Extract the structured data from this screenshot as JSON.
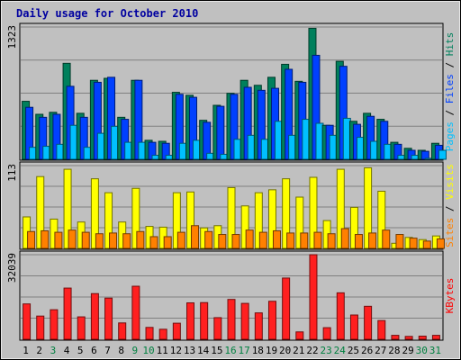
{
  "chart_data": {
    "type": "bar",
    "title": "Daily usage for October 2010",
    "days": [
      "1",
      "2",
      "3",
      "4",
      "5",
      "6",
      "7",
      "8",
      "9",
      "10",
      "11",
      "12",
      "13",
      "14",
      "15",
      "16",
      "17",
      "18",
      "19",
      "20",
      "21",
      "22",
      "23",
      "24",
      "25",
      "26",
      "27",
      "28",
      "29",
      "30",
      "31"
    ],
    "weekend_days": [
      "3",
      "9",
      "10",
      "16",
      "17",
      "23",
      "24",
      "30",
      "31"
    ],
    "panels": [
      {
        "id": "pages-files-hits",
        "max_label": "1323",
        "max": 1323,
        "side_labels": [
          {
            "text": "Pages",
            "color": "#00c0ff"
          },
          {
            "text": " / ",
            "color": "#000000"
          },
          {
            "text": "Files",
            "color": "#0040ff"
          },
          {
            "text": " / ",
            "color": "#000000"
          },
          {
            "text": "Hits",
            "color": "#00805c"
          }
        ],
        "series": [
          {
            "name": "Hits",
            "color": "#00805c",
            "values": [
              580,
              450,
              470,
              960,
              460,
              790,
              810,
              420,
              790,
              190,
              180,
              670,
              640,
              390,
              540,
              660,
              790,
              740,
              820,
              950,
              780,
              1310,
              340,
              980,
              380,
              460,
              400,
              170,
              110,
              90,
              160
            ]
          },
          {
            "name": "Files",
            "color": "#0040ff",
            "values": [
              520,
              420,
              450,
              730,
              420,
              770,
              820,
              400,
              790,
              170,
              160,
              650,
              620,
              370,
              530,
              650,
              720,
              690,
              710,
              900,
              770,
              1040,
              340,
              930,
              350,
              430,
              380,
              150,
              90,
              80,
              140
            ]
          },
          {
            "name": "Pages",
            "color": "#00c0ff",
            "values": [
              120,
              130,
              150,
              340,
              120,
              260,
              330,
              170,
              170,
              40,
              40,
              160,
              190,
              60,
              50,
              200,
              240,
              200,
              380,
              240,
              400,
              360,
              240,
              410,
              220,
              180,
              150,
              40,
              40,
              10,
              90
            ]
          }
        ]
      },
      {
        "id": "visits-sites",
        "max_label": "113",
        "max": 113,
        "side_labels": [
          {
            "text": "Sites",
            "color": "#ff8000"
          },
          {
            "text": " / ",
            "color": "#000000"
          },
          {
            "text": "Visits",
            "color": "#ffff00"
          }
        ],
        "series": [
          {
            "name": "Visits",
            "color": "#ffff00",
            "values": [
              43,
              98,
              40,
              108,
              36,
              95,
              76,
              36,
              82,
              30,
              29,
              76,
              77,
              28,
              31,
              83,
              58,
              76,
              80,
              95,
              70,
              97,
              38,
              108,
              56,
              110,
              78,
              7,
              15,
              12,
              17
            ]
          },
          {
            "name": "Sites",
            "color": "#ff8000",
            "values": [
              23,
              24,
              22,
              25,
              22,
              20,
              21,
              20,
              23,
              16,
              16,
              22,
              31,
              23,
              19,
              19,
              25,
              22,
              24,
              21,
              21,
              22,
              20,
              27,
              19,
              21,
              25,
              19,
              14,
              10,
              13
            ]
          }
        ]
      },
      {
        "id": "kbytes",
        "max_label": "32039",
        "max": 32039,
        "side_labels": [
          {
            "text": "KBytes",
            "color": "#ff0000"
          }
        ],
        "series": [
          {
            "name": "KBytes",
            "color": "#ff2020",
            "values": [
              13400,
              8800,
              11200,
              19400,
              8500,
              17300,
              15600,
              6200,
              20100,
              4500,
              3800,
              6100,
              13800,
              13900,
              8200,
              15100,
              13600,
              10000,
              14400,
              23200,
              2800,
              32039,
              4400,
              17600,
              9200,
              12500,
              7100,
              1500,
              1100,
              1200,
              1500
            ]
          }
        ]
      }
    ]
  }
}
